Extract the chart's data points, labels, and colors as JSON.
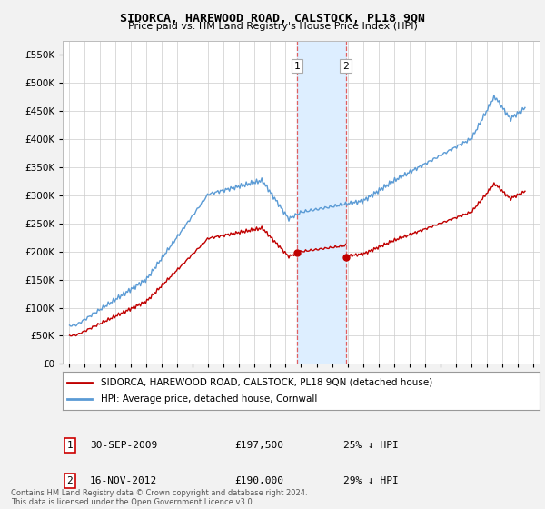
{
  "title": "SIDORCA, HAREWOOD ROAD, CALSTOCK, PL18 9QN",
  "subtitle": "Price paid vs. HM Land Registry's House Price Index (HPI)",
  "legend_line1": "SIDORCA, HAREWOOD ROAD, CALSTOCK, PL18 9QN (detached house)",
  "legend_line2": "HPI: Average price, detached house, Cornwall",
  "annotation1_label": "1",
  "annotation1_date": "30-SEP-2009",
  "annotation1_price": "£197,500",
  "annotation1_hpi": "25% ↓ HPI",
  "annotation1_year": 2009.75,
  "annotation1_value": 197500,
  "annotation2_label": "2",
  "annotation2_date": "16-NOV-2012",
  "annotation2_price": "£190,000",
  "annotation2_hpi": "29% ↓ HPI",
  "annotation2_year": 2012.88,
  "annotation2_value": 190000,
  "footer": "Contains HM Land Registry data © Crown copyright and database right 2024.\nThis data is licensed under the Open Government Licence v3.0.",
  "hpi_color": "#5b9bd5",
  "price_color": "#c00000",
  "shading_color": "#ddeeff",
  "vline_color": "#e06060",
  "ylim": [
    0,
    575000
  ],
  "yticks": [
    0,
    50000,
    100000,
    150000,
    200000,
    250000,
    300000,
    350000,
    400000,
    450000,
    500000,
    550000
  ],
  "xlim_start": 1994.6,
  "xlim_end": 2025.4,
  "background_color": "#f2f2f2",
  "plot_bg_color": "#ffffff",
  "grid_color": "#cccccc"
}
